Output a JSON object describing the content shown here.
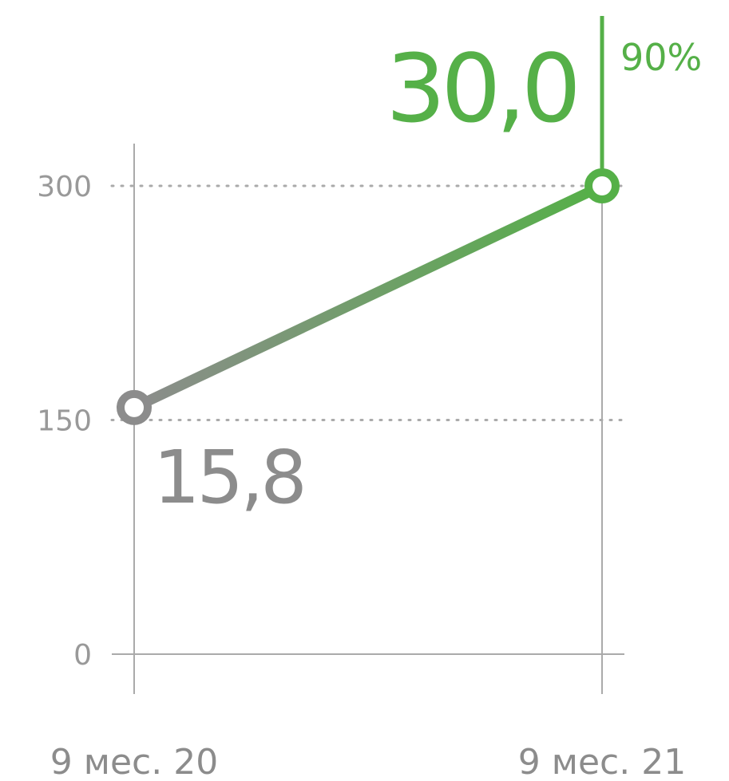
{
  "chart_data": {
    "type": "line",
    "categories": [
      "9 мес. 20",
      "9 мес. 21"
    ],
    "values": [
      158,
      300
    ],
    "value_labels": [
      "15,8",
      "30,0"
    ],
    "point_colors": [
      "#8c8c8c",
      "#55b048"
    ],
    "annotation": "90%",
    "ylim": [
      0,
      300
    ],
    "yticks": [
      0,
      150,
      300
    ],
    "grid": true
  }
}
